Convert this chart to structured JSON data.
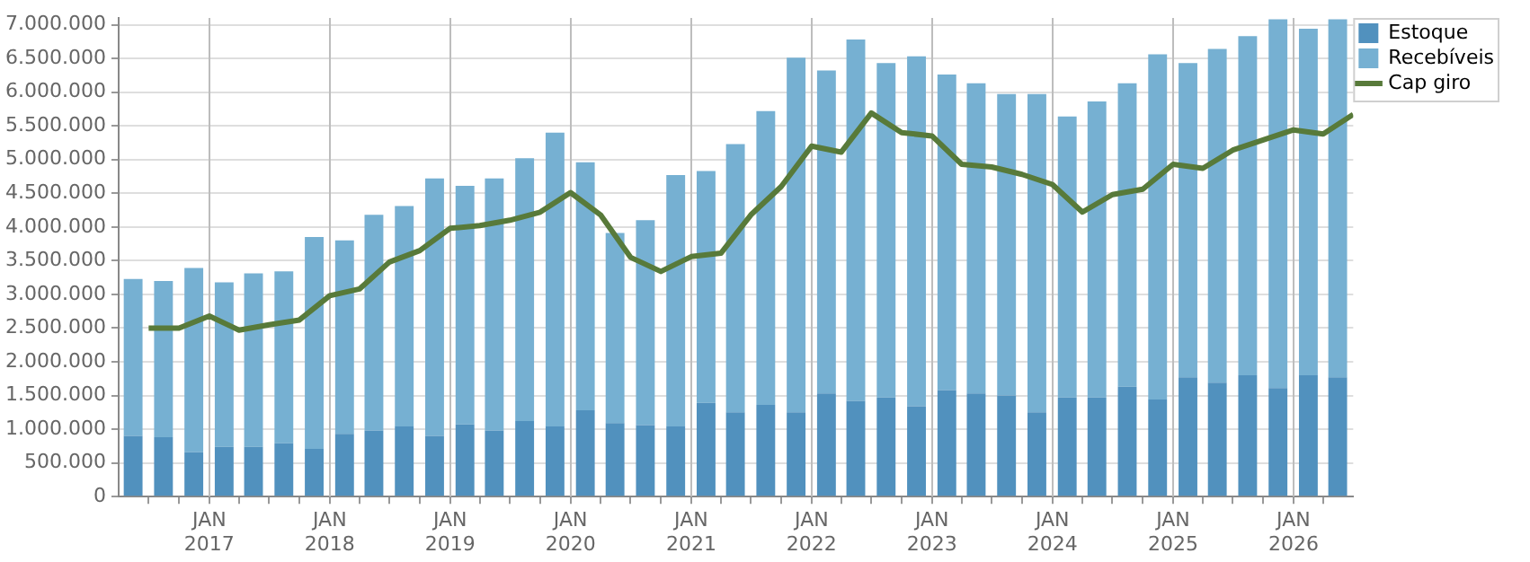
{
  "chart_data": {
    "type": "bar",
    "stacked": true,
    "grid": true,
    "legend": "top right",
    "x": [
      "2016-05-15",
      "2016-08-15",
      "2016-11-15",
      "2017-02-15",
      "2017-05-15",
      "2017-08-15",
      "2017-11-15",
      "2018-02-15",
      "2018-05-15",
      "2018-08-15",
      "2018-11-15",
      "2019-02-15",
      "2019-05-15",
      "2019-08-15",
      "2019-11-15",
      "2020-02-15",
      "2020-05-15",
      "2020-08-15",
      "2020-11-15",
      "2021-02-15",
      "2021-05-15",
      "2021-08-15",
      "2021-11-15",
      "2022-02-15",
      "2022-05-15",
      "2022-08-15",
      "2022-11-15",
      "2023-02-15",
      "2023-05-15",
      "2023-08-15",
      "2023-11-15",
      "2024-02-15",
      "2024-05-15",
      "2024-08-15",
      "2024-11-15",
      "2025-02-15",
      "2025-05-15",
      "2025-08-15",
      "2025-11-15",
      "2026-02-15",
      "2026-05-15"
    ],
    "xlim": [
      "2016-04",
      "2026-07"
    ],
    "xticks": [
      {
        "value": "2016-07",
        "label": null
      },
      {
        "value": "2016-10",
        "label": null
      },
      {
        "value": "2017-01",
        "label": "JAN 2017"
      },
      {
        "value": "2017-04",
        "label": null
      },
      {
        "value": "2017-07",
        "label": null
      },
      {
        "value": "2017-10",
        "label": null
      },
      {
        "value": "2018-01",
        "label": "JAN 2018"
      },
      {
        "value": "2018-04",
        "label": null
      },
      {
        "value": "2018-07",
        "label": null
      },
      {
        "value": "2018-10",
        "label": null
      },
      {
        "value": "2019-01",
        "label": "JAN 2019"
      },
      {
        "value": "2019-04",
        "label": null
      },
      {
        "value": "2019-07",
        "label": null
      },
      {
        "value": "2019-10",
        "label": null
      },
      {
        "value": "2020-01",
        "label": "JAN 2020"
      },
      {
        "value": "2020-04",
        "label": null
      },
      {
        "value": "2020-07",
        "label": null
      },
      {
        "value": "2020-10",
        "label": null
      },
      {
        "value": "2021-01",
        "label": "JAN 2021"
      },
      {
        "value": "2021-04",
        "label": null
      },
      {
        "value": "2021-07",
        "label": null
      },
      {
        "value": "2021-10",
        "label": null
      },
      {
        "value": "2022-01",
        "label": "JAN 2022"
      },
      {
        "value": "2022-04",
        "label": null
      },
      {
        "value": "2022-07",
        "label": null
      },
      {
        "value": "2022-10",
        "label": null
      },
      {
        "value": "2023-01",
        "label": "JAN 2023"
      },
      {
        "value": "2023-04",
        "label": null
      },
      {
        "value": "2023-07",
        "label": null
      },
      {
        "value": "2023-10",
        "label": null
      },
      {
        "value": "2024-01",
        "label": "JAN 2024"
      },
      {
        "value": "2024-04",
        "label": null
      },
      {
        "value": "2024-07",
        "label": null
      },
      {
        "value": "2024-10",
        "label": null
      },
      {
        "value": "2025-01",
        "label": "JAN 2025"
      },
      {
        "value": "2025-04",
        "label": null
      },
      {
        "value": "2025-07",
        "label": null
      },
      {
        "value": "2025-10",
        "label": null
      },
      {
        "value": "2026-01",
        "label": "JAN 2026"
      },
      {
        "value": "2026-04",
        "label": null
      }
    ],
    "ylim": [
      0,
      7100000
    ],
    "yticks": [
      0,
      {
        "value": 500000,
        "label": "500.000"
      },
      {
        "value": 1000000,
        "label": "1.000.000"
      },
      {
        "value": 1500000,
        "label": "1.500.000"
      },
      {
        "value": 2000000,
        "label": "2.000.000"
      },
      {
        "value": 2500000,
        "label": "2.500.000"
      },
      {
        "value": 3000000,
        "label": "3.000.000"
      },
      {
        "value": 3500000,
        "label": "3.500.000"
      },
      {
        "value": 4000000,
        "label": "4.000.000"
      },
      {
        "value": 4500000,
        "label": "4.500.000"
      },
      {
        "value": 5000000,
        "label": "5.000.000"
      },
      {
        "value": 5500000,
        "label": "5.500.000"
      },
      {
        "value": 6000000,
        "label": "6.000.000"
      },
      {
        "value": 6500000,
        "label": "6.500.000"
      },
      {
        "value": 7000000,
        "label": "7.000.000"
      }
    ],
    "series": [
      {
        "name": "Estoque",
        "color": "#5191be",
        "values": [
          900000,
          880000,
          660000,
          740000,
          740000,
          790000,
          710000,
          930000,
          980000,
          1040000,
          900000,
          1070000,
          980000,
          1120000,
          1040000,
          1280000,
          1090000,
          1060000,
          1040000,
          1390000,
          1250000,
          1360000,
          1250000,
          1530000,
          1420000,
          1470000,
          1340000,
          1580000,
          1530000,
          1500000,
          1250000,
          1470000,
          1470000,
          1630000,
          1440000,
          1770000,
          1690000,
          1800000,
          1610000,
          1800000,
          1770000
        ]
      },
      {
        "name": "Recebíveis",
        "color": "#76b0d2",
        "values": [
          2330000,
          2320000,
          2730000,
          2440000,
          2570000,
          2550000,
          3140000,
          2870000,
          3200000,
          3270000,
          3820000,
          3540000,
          3740000,
          3900000,
          4360000,
          3680000,
          2820000,
          3040000,
          3730000,
          3440000,
          3980000,
          4360000,
          5260000,
          4790000,
          5360000,
          4960000,
          5190000,
          4680000,
          4600000,
          4470000,
          4720000,
          4170000,
          4390000,
          4500000,
          5120000,
          4660000,
          4950000,
          5030000,
          5470000,
          5140000,
          5310000
        ]
      },
      {
        "name": "Cap giro",
        "type": "line",
        "color": "#587a3a",
        "x": [
          "2016-07",
          "2016-10",
          "2017-01",
          "2017-04",
          "2017-07",
          "2017-10",
          "2018-01",
          "2018-04",
          "2018-07",
          "2018-10",
          "2019-01",
          "2019-04",
          "2019-07",
          "2019-10",
          "2020-01",
          "2020-04",
          "2020-07",
          "2020-10",
          "2021-01",
          "2021-04",
          "2021-07",
          "2021-10",
          "2022-01",
          "2022-04",
          "2022-07",
          "2022-10",
          "2023-01",
          "2023-04",
          "2023-07",
          "2023-10",
          "2024-01",
          "2024-04",
          "2024-07",
          "2024-10",
          "2025-01",
          "2025-04",
          "2025-07",
          "2025-10",
          "2026-01",
          "2026-04",
          "2026-07"
        ],
        "values": [
          2500000,
          2500000,
          2680000,
          2470000,
          2550000,
          2620000,
          2980000,
          3080000,
          3480000,
          3650000,
          3980000,
          4020000,
          4100000,
          4220000,
          4510000,
          4180000,
          3550000,
          3340000,
          3560000,
          3610000,
          4180000,
          4600000,
          5200000,
          5110000,
          5690000,
          5400000,
          5350000,
          4930000,
          4890000,
          4780000,
          4630000,
          4220000,
          4480000,
          4560000,
          4930000,
          4870000,
          5140000,
          5290000,
          5440000,
          5380000,
          5670000
        ]
      }
    ]
  }
}
